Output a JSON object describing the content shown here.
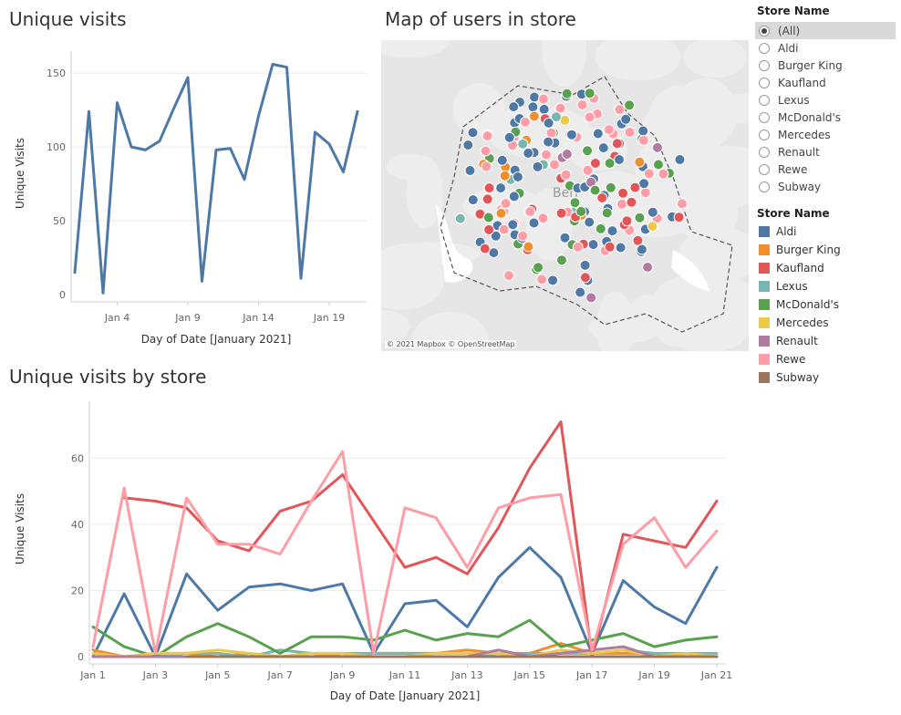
{
  "titles": {
    "unique_visits": "Unique visits",
    "map": "Map of users in store",
    "by_store": "Unique visits by store"
  },
  "map": {
    "credit": "© 2021 Mapbox © OpenStreetMap",
    "center_label": "Berl"
  },
  "filter": {
    "title": "Store Name",
    "options": [
      "(All)",
      "Aldi",
      "Burger King",
      "Kaufland",
      "Lexus",
      "McDonald's",
      "Mercedes",
      "Renault",
      "Rewe",
      "Subway"
    ],
    "selected": "(All)"
  },
  "legend": {
    "title": "Store Name",
    "items": [
      {
        "label": "Aldi",
        "color": "#4e79a7"
      },
      {
        "label": "Burger King",
        "color": "#f28e2b"
      },
      {
        "label": "Kaufland",
        "color": "#e15759"
      },
      {
        "label": "Lexus",
        "color": "#76b7b2"
      },
      {
        "label": "McDonald's",
        "color": "#59a14f"
      },
      {
        "label": "Mercedes",
        "color": "#edc948"
      },
      {
        "label": "Renault",
        "color": "#b07aa1"
      },
      {
        "label": "Rewe",
        "color": "#ff9da7"
      },
      {
        "label": "Subway",
        "color": "#9c755f"
      }
    ]
  },
  "chart_data": [
    {
      "type": "line",
      "title": "Unique visits",
      "xlabel": "Day of Date [January 2021]",
      "ylabel": "Unique Visits",
      "x": [
        1,
        2,
        3,
        4,
        5,
        6,
        7,
        8,
        9,
        10,
        11,
        12,
        13,
        14,
        15,
        16,
        17,
        18,
        19,
        20,
        21
      ],
      "x_ticks": [
        "Jan 4",
        "Jan 9",
        "Jan 14",
        "Jan 19"
      ],
      "x_tick_days": [
        4,
        9,
        14,
        19
      ],
      "y_ticks": [
        0,
        50,
        100,
        150
      ],
      "ylim": [
        0,
        160
      ],
      "series": [
        {
          "color": "#4e79a7",
          "values": [
            15,
            124,
            1,
            130,
            100,
            98,
            104,
            126,
            147,
            9,
            98,
            99,
            78,
            121,
            156,
            154,
            11,
            110,
            102,
            83,
            124
          ]
        }
      ]
    },
    {
      "type": "line",
      "title": "Unique visits by store",
      "xlabel": "Day of Date [January 2021]",
      "ylabel": "Unique Visits",
      "x_ticks": [
        "Jan 1",
        "Jan 3",
        "Jan 5",
        "Jan 7",
        "Jan 9",
        "Jan 11",
        "Jan 13",
        "Jan 15",
        "Jan 17",
        "Jan 19",
        "Jan 21"
      ],
      "x_tick_days": [
        1,
        3,
        5,
        7,
        9,
        11,
        13,
        15,
        17,
        19,
        21
      ],
      "y_ticks": [
        0,
        20,
        40,
        60
      ],
      "ylim": [
        0,
        75
      ],
      "series": [
        {
          "name": "Aldi",
          "color": "#4e79a7",
          "x": [
            1,
            2,
            3,
            4,
            5,
            6,
            7,
            8,
            9,
            10,
            11,
            12,
            13,
            14,
            15,
            16,
            17,
            18,
            19,
            20,
            21
          ],
          "values": [
            0,
            19,
            0,
            25,
            14,
            21,
            22,
            20,
            22,
            1,
            16,
            17,
            9,
            24,
            33,
            24,
            1,
            23,
            15,
            10,
            27
          ]
        },
        {
          "name": "Burger King",
          "color": "#f28e2b",
          "x": [
            1,
            2,
            3,
            4,
            5,
            6,
            7,
            8,
            9,
            10,
            11,
            12,
            13,
            14,
            15,
            16,
            17,
            18,
            19,
            20,
            21
          ],
          "values": [
            2,
            0,
            1,
            1,
            0,
            1,
            0,
            1,
            0,
            1,
            1,
            1,
            2,
            1,
            1,
            4,
            1,
            1,
            1,
            0,
            0
          ]
        },
        {
          "name": "Kaufland",
          "color": "#e15759",
          "x": [
            2,
            3,
            4,
            5,
            6,
            7,
            8,
            9,
            10,
            11,
            12,
            13,
            14,
            15,
            16,
            17,
            18,
            19,
            20,
            21
          ],
          "values": [
            48,
            47,
            45,
            35,
            32,
            44,
            47,
            55,
            41,
            27,
            30,
            25,
            39,
            57,
            71,
            0,
            37,
            35,
            33,
            47
          ]
        },
        {
          "name": "Lexus",
          "color": "#76b7b2",
          "x": [
            1,
            2,
            3,
            4,
            5,
            6,
            7,
            8,
            9,
            10,
            11,
            12,
            13,
            14,
            15,
            16,
            17,
            18,
            19,
            20,
            21
          ],
          "values": [
            0,
            0,
            0,
            1,
            1,
            0,
            2,
            1,
            1,
            1,
            1,
            1,
            1,
            0,
            1,
            1,
            1,
            2,
            1,
            1,
            1
          ]
        },
        {
          "name": "McDonald's",
          "color": "#59a14f",
          "x": [
            1,
            2,
            3,
            4,
            5,
            6,
            7,
            8,
            9,
            10,
            11,
            12,
            13,
            14,
            15,
            16,
            17,
            18,
            19,
            20,
            21
          ],
          "values": [
            9,
            3,
            0,
            6,
            10,
            6,
            1,
            6,
            6,
            5,
            8,
            5,
            7,
            6,
            11,
            3,
            5,
            7,
            3,
            5,
            6
          ]
        },
        {
          "name": "Mercedes",
          "color": "#edc948",
          "x": [
            1,
            2,
            3,
            4,
            5,
            6,
            7,
            8,
            9,
            10,
            11,
            12,
            13,
            14,
            15,
            16,
            17,
            18,
            19,
            20,
            21
          ],
          "values": [
            1,
            0,
            1,
            1,
            2,
            1,
            0,
            1,
            1,
            0,
            0,
            1,
            1,
            1,
            0,
            2,
            1,
            2,
            0,
            1,
            0
          ]
        },
        {
          "name": "Renault",
          "color": "#b07aa1",
          "x": [
            1,
            2,
            3,
            4,
            5,
            6,
            7,
            8,
            9,
            10,
            11,
            12,
            13,
            14,
            15,
            16,
            17,
            18,
            19,
            20,
            21
          ],
          "values": [
            0,
            0,
            0,
            0,
            0,
            0,
            0,
            0,
            0,
            0,
            0,
            0,
            0,
            2,
            0,
            1,
            2,
            3,
            0,
            0,
            0
          ]
        },
        {
          "name": "Rewe",
          "color": "#ff9da7",
          "x": [
            1,
            2,
            3,
            4,
            5,
            6,
            7,
            8,
            9,
            10,
            11,
            12,
            13,
            14,
            15,
            16,
            17,
            18,
            19,
            20,
            21
          ],
          "values": [
            3,
            51,
            1,
            48,
            34,
            34,
            31,
            47,
            62,
            1,
            45,
            42,
            27,
            45,
            48,
            49,
            2,
            34,
            42,
            27,
            38
          ]
        },
        {
          "name": "Subway",
          "color": "#9c755f",
          "x": [
            4,
            5,
            6,
            7,
            8,
            9,
            10,
            11,
            12,
            13,
            14,
            15,
            16,
            17,
            18,
            19,
            20,
            21
          ],
          "values": [
            0,
            0,
            0,
            0,
            0,
            0,
            0,
            0,
            0,
            0,
            0,
            0,
            0,
            0,
            0,
            0,
            0,
            0
          ]
        }
      ]
    }
  ]
}
